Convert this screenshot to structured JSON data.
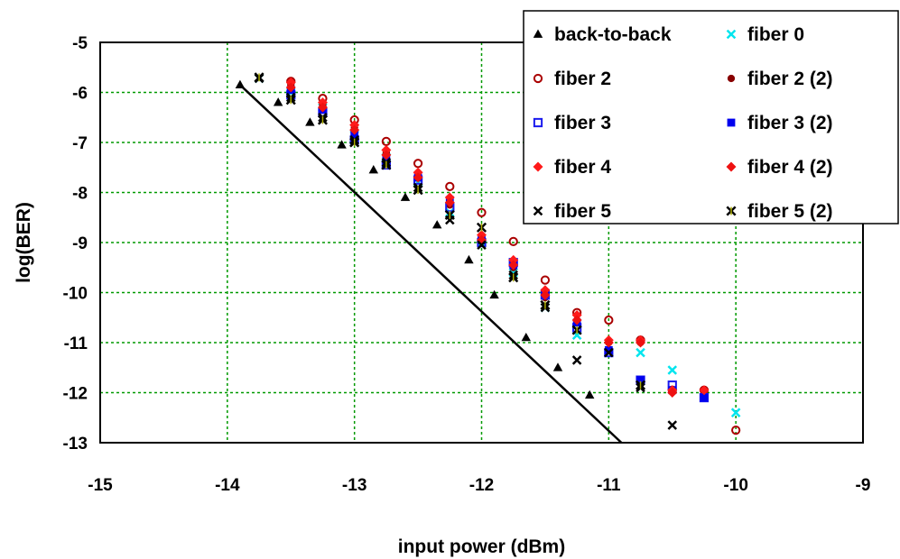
{
  "chart_data": {
    "type": "scatter",
    "title": "",
    "xlabel": "input power (dBm)",
    "ylabel": "log(BER)",
    "xlim": [
      -15,
      -9
    ],
    "ylim": [
      -13,
      -5
    ],
    "x_ticks": [
      "-15",
      "-14",
      "-13",
      "-12",
      "-11",
      "-10",
      "-9"
    ],
    "y_ticks": [
      "-5",
      "-6",
      "-7",
      "-8",
      "-9",
      "-10",
      "-11",
      "-12",
      "-13"
    ],
    "grid": true,
    "legend_position": "top-right",
    "fit_line": {
      "points": [
        [
          -13.9,
          -5.85
        ],
        [
          -10.9,
          -13.0
        ]
      ],
      "color": "#000000"
    },
    "series": [
      {
        "name": "back-to-back",
        "marker": "triangle",
        "color": "#000000",
        "points": [
          [
            -13.9,
            -5.85
          ],
          [
            -13.6,
            -6.2
          ],
          [
            -13.35,
            -6.6
          ],
          [
            -13.1,
            -7.05
          ],
          [
            -12.85,
            -7.55
          ],
          [
            -12.6,
            -8.1
          ],
          [
            -12.35,
            -8.65
          ],
          [
            -12.1,
            -9.35
          ],
          [
            -11.9,
            -10.05
          ],
          [
            -11.65,
            -10.9
          ],
          [
            -11.4,
            -11.5
          ],
          [
            -11.15,
            -12.05
          ]
        ]
      },
      {
        "name": "fiber 0",
        "marker": "x",
        "color": "#00e5ee",
        "points": [
          [
            -13.75,
            -5.72
          ],
          [
            -13.5,
            -6.0
          ],
          [
            -13.25,
            -6.3
          ],
          [
            -13.0,
            -6.85
          ],
          [
            -12.75,
            -7.3
          ],
          [
            -12.5,
            -7.8
          ],
          [
            -12.25,
            -8.4
          ],
          [
            -12.0,
            -9.0
          ],
          [
            -11.75,
            -9.6
          ],
          [
            -11.5,
            -10.3
          ],
          [
            -11.25,
            -10.85
          ],
          [
            -11.0,
            -11.2
          ],
          [
            -10.75,
            -11.2
          ],
          [
            -10.5,
            -11.55
          ],
          [
            -10.0,
            -12.4
          ]
        ]
      },
      {
        "name": "fiber 2",
        "marker": "circle-open",
        "color": "#aa0000",
        "points": [
          [
            -13.5,
            -5.78
          ],
          [
            -13.25,
            -6.12
          ],
          [
            -13.0,
            -6.55
          ],
          [
            -12.75,
            -6.98
          ],
          [
            -12.5,
            -7.42
          ],
          [
            -12.25,
            -7.88
          ],
          [
            -12.0,
            -8.4
          ],
          [
            -11.75,
            -8.98
          ],
          [
            -11.5,
            -9.75
          ],
          [
            -11.25,
            -10.4
          ],
          [
            -11.0,
            -10.55
          ],
          [
            -10.75,
            -10.95
          ],
          [
            -10.5,
            -11.95
          ],
          [
            -10.25,
            -11.95
          ],
          [
            -10.0,
            -12.75
          ]
        ]
      },
      {
        "name": "fiber 2 (2)",
        "marker": "circle-filled",
        "color": "#880000",
        "points": [
          [
            -13.5,
            -5.85
          ],
          [
            -13.25,
            -6.25
          ],
          [
            -13.0,
            -6.7
          ],
          [
            -12.75,
            -7.2
          ],
          [
            -12.5,
            -7.7
          ],
          [
            -12.25,
            -8.25
          ],
          [
            -12.0,
            -8.9
          ],
          [
            -11.75,
            -9.5
          ],
          [
            -11.5,
            -10.1
          ],
          [
            -11.25,
            -10.55
          ],
          [
            -11.0,
            -11.0
          ],
          [
            -10.75,
            -11.0
          ]
        ]
      },
      {
        "name": "fiber 3",
        "marker": "square-open",
        "color": "#1a1aee",
        "points": [
          [
            -13.5,
            -6.05
          ],
          [
            -13.25,
            -6.4
          ],
          [
            -13.0,
            -6.95
          ],
          [
            -12.75,
            -7.45
          ],
          [
            -12.5,
            -7.75
          ],
          [
            -12.25,
            -8.3
          ],
          [
            -12.0,
            -9.0
          ],
          [
            -11.75,
            -9.4
          ],
          [
            -11.5,
            -10.05
          ],
          [
            -11.25,
            -10.7
          ],
          [
            -11.0,
            -11.2
          ],
          [
            -10.75,
            -11.75
          ],
          [
            -10.5,
            -11.85
          ],
          [
            -10.25,
            -12.1
          ]
        ]
      },
      {
        "name": "fiber 3 (2)",
        "marker": "square-filled",
        "color": "#0000ee",
        "points": [
          [
            -13.5,
            -5.95
          ],
          [
            -13.25,
            -6.35
          ],
          [
            -13.0,
            -6.85
          ],
          [
            -12.75,
            -7.35
          ],
          [
            -12.5,
            -7.7
          ],
          [
            -12.25,
            -8.15
          ],
          [
            -12.0,
            -8.95
          ],
          [
            -11.75,
            -9.45
          ],
          [
            -11.5,
            -10.0
          ],
          [
            -11.25,
            -10.6
          ],
          [
            -11.0,
            -11.15
          ],
          [
            -10.75,
            -11.75
          ],
          [
            -10.5,
            -11.95
          ],
          [
            -10.25,
            -12.1
          ]
        ]
      },
      {
        "name": "fiber 4",
        "marker": "diamond",
        "color": "#ff1a1a",
        "points": [
          [
            -13.5,
            -5.8
          ],
          [
            -13.25,
            -6.2
          ],
          [
            -13.0,
            -6.65
          ],
          [
            -12.75,
            -7.15
          ],
          [
            -12.5,
            -7.6
          ],
          [
            -12.25,
            -8.1
          ],
          [
            -12.0,
            -8.85
          ],
          [
            -11.75,
            -9.35
          ],
          [
            -11.5,
            -9.95
          ],
          [
            -11.25,
            -10.45
          ],
          [
            -11.0,
            -10.95
          ],
          [
            -10.75,
            -10.95
          ],
          [
            -10.5,
            -11.95
          ],
          [
            -10.25,
            -11.95
          ]
        ]
      },
      {
        "name": "fiber 4 (2)",
        "marker": "diamond",
        "color": "#ee1111",
        "points": [
          [
            -13.5,
            -5.9
          ],
          [
            -13.25,
            -6.3
          ],
          [
            -13.0,
            -6.75
          ],
          [
            -12.75,
            -7.25
          ],
          [
            -12.5,
            -7.7
          ],
          [
            -12.25,
            -8.2
          ],
          [
            -12.0,
            -8.95
          ],
          [
            -11.75,
            -9.45
          ],
          [
            -11.5,
            -10.05
          ],
          [
            -11.25,
            -10.55
          ],
          [
            -11.0,
            -11.0
          ],
          [
            -10.75,
            -11.0
          ],
          [
            -10.5,
            -12.0
          ]
        ]
      },
      {
        "name": "fiber 5",
        "marker": "x",
        "color": "#000000",
        "points": [
          [
            -13.75,
            -5.72
          ],
          [
            -13.5,
            -6.1
          ],
          [
            -13.25,
            -6.5
          ],
          [
            -13.0,
            -6.95
          ],
          [
            -12.75,
            -7.4
          ],
          [
            -12.5,
            -7.9
          ],
          [
            -12.25,
            -8.55
          ],
          [
            -12.0,
            -9.05
          ],
          [
            -11.75,
            -9.65
          ],
          [
            -11.5,
            -10.3
          ],
          [
            -11.25,
            -11.35
          ],
          [
            -11.0,
            -11.2
          ],
          [
            -10.75,
            -11.9
          ],
          [
            -10.5,
            -12.65
          ]
        ]
      },
      {
        "name": "fiber 5 (2)",
        "marker": "x-star",
        "color": "#000000",
        "points": [
          [
            -13.75,
            -5.7
          ],
          [
            -13.5,
            -6.15
          ],
          [
            -13.25,
            -6.55
          ],
          [
            -13.0,
            -7.0
          ],
          [
            -12.75,
            -7.45
          ],
          [
            -12.5,
            -7.95
          ],
          [
            -12.25,
            -8.45
          ],
          [
            -12.0,
            -8.7
          ],
          [
            -11.75,
            -9.7
          ],
          [
            -11.5,
            -10.25
          ],
          [
            -11.25,
            -10.75
          ],
          [
            -10.75,
            -11.85
          ]
        ]
      }
    ]
  }
}
